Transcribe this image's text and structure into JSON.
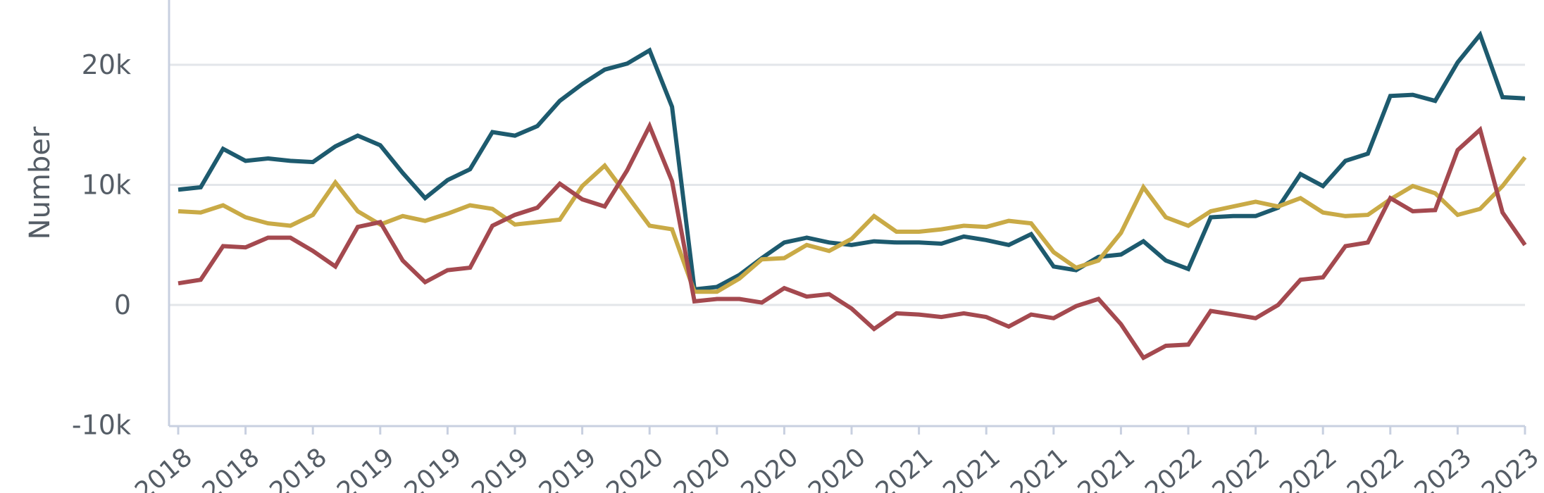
{
  "chart_data": {
    "type": "line",
    "ylabel": "Number",
    "ylim": [
      -10000,
      25000
    ],
    "yticks": [
      {
        "value": -10000,
        "label": "-10k"
      },
      {
        "value": 0,
        "label": "0"
      },
      {
        "value": 10000,
        "label": "10k"
      },
      {
        "value": 20000,
        "label": "20k"
      }
    ],
    "xticks": [
      {
        "index": 0,
        "label": "2018"
      },
      {
        "index": 3,
        "label": "2018"
      },
      {
        "index": 6,
        "label": "2018"
      },
      {
        "index": 9,
        "label": "2019"
      },
      {
        "index": 12,
        "label": "2019"
      },
      {
        "index": 15,
        "label": "2019"
      },
      {
        "index": 18,
        "label": "2019"
      },
      {
        "index": 21,
        "label": "2020"
      },
      {
        "index": 24,
        "label": "2020"
      },
      {
        "index": 27,
        "label": "2020"
      },
      {
        "index": 30,
        "label": "2020"
      },
      {
        "index": 33,
        "label": "2021"
      },
      {
        "index": 36,
        "label": "2021"
      },
      {
        "index": 39,
        "label": "2021"
      },
      {
        "index": 42,
        "label": "2021"
      },
      {
        "index": 45,
        "label": "2022"
      },
      {
        "index": 48,
        "label": "2022"
      },
      {
        "index": 51,
        "label": "2022"
      },
      {
        "index": 54,
        "label": "2022"
      },
      {
        "index": 57,
        "label": "2023"
      },
      {
        "index": 60,
        "label": "2023"
      }
    ],
    "grid": true,
    "series": [
      {
        "color": "#1d5a6e",
        "values": [
          9600,
          9800,
          13000,
          12000,
          12200,
          12000,
          11900,
          13200,
          14100,
          13300,
          11000,
          8900,
          10400,
          11300,
          14400,
          14100,
          14900,
          17000,
          18400,
          19600,
          20100,
          21200,
          16500,
          1300,
          1500,
          2500,
          3900,
          5200,
          5600,
          5200,
          5000,
          5300,
          5200,
          5200,
          5100,
          5700,
          5400,
          5000,
          5900,
          3200,
          2900,
          4000,
          4200,
          5300,
          3700,
          3000,
          7300,
          7400,
          7400,
          8100,
          10900,
          9900,
          12000,
          12600,
          17400,
          17500,
          17000,
          20200,
          22500,
          17300,
          17200
        ]
      },
      {
        "color": "#c9aa46",
        "values": [
          7800,
          7700,
          8300,
          7300,
          6800,
          6600,
          7500,
          10200,
          7800,
          6700,
          7400,
          7000,
          7600,
          8300,
          8000,
          6700,
          6900,
          7100,
          9900,
          11600,
          9100,
          6600,
          6300,
          1100,
          1100,
          2200,
          3800,
          3900,
          5000,
          4500,
          5500,
          7400,
          6100,
          6100,
          6300,
          6600,
          6500,
          7000,
          6800,
          4400,
          3100,
          3700,
          6000,
          9800,
          7300,
          6600,
          7800,
          8200,
          8600,
          8200,
          8900,
          7700,
          7400,
          7500,
          8800,
          9900,
          9300,
          7500,
          8000,
          9900,
          12300
        ]
      },
      {
        "color": "#a4494f",
        "values": [
          1800,
          2100,
          4900,
          4800,
          5600,
          5600,
          4500,
          3200,
          6500,
          6900,
          3700,
          1900,
          2900,
          3100,
          6600,
          7500,
          8100,
          10100,
          8800,
          8200,
          11200,
          14900,
          10300,
          300,
          500,
          500,
          200,
          1400,
          700,
          900,
          -300,
          -2000,
          -700,
          -800,
          -1000,
          -700,
          -1000,
          -1800,
          -800,
          -1100,
          -100,
          500,
          -1600,
          -4400,
          -3400,
          -3300,
          -500,
          -800,
          -1100,
          0,
          2100,
          2300,
          4900,
          5200,
          8900,
          7800,
          7900,
          12900,
          14600,
          7700,
          5000
        ]
      }
    ]
  }
}
